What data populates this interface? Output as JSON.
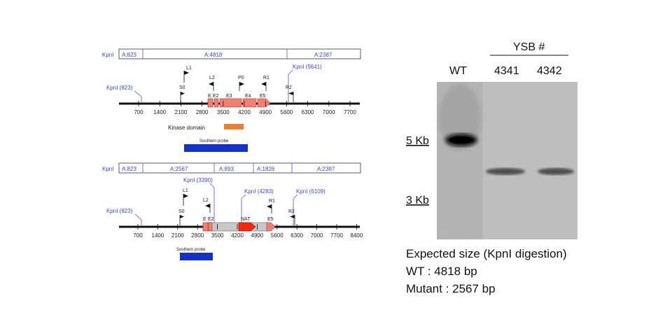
{
  "wt_map": {
    "segments": [
      "KpnI",
      "A:823",
      "A:4818",
      "A:2387"
    ],
    "kpn_sites": [
      "KpnI (823)",
      "KpnI (5641)"
    ],
    "primers": [
      "S0",
      "L1",
      "L2",
      "P0",
      "R1",
      "R2"
    ],
    "exons": [
      "E",
      "E2",
      "E3",
      "E4",
      "E5"
    ],
    "ticks": [
      "700",
      "1400",
      "2100",
      "2800",
      "3500",
      "4200",
      "4900",
      "5600",
      "6300",
      "7000",
      "7700"
    ],
    "kinase_label": "Kinase domain",
    "probe_label": "Southern probe",
    "kinase_color": "#f07c30",
    "probe_color": "#1530c8",
    "exon_color": "#f08070"
  },
  "mut_map": {
    "segments": [
      "KpnI",
      "A:823",
      "A:2567",
      "A:893",
      "A:1826",
      "A:2387"
    ],
    "kpn_sites": [
      "KpnI (823)",
      "KpnI (3390)",
      "KpnI (4283)",
      "KpnI (6109)"
    ],
    "primers": [
      "S0",
      "L1",
      "L2",
      "R1",
      "R2"
    ],
    "exons": [
      "E",
      "E2",
      "NAT",
      "E5"
    ],
    "ticks": [
      "700",
      "1400",
      "2100",
      "2800",
      "3500",
      "4200",
      "4900",
      "5600",
      "6300",
      "7000",
      "7700",
      "8400"
    ],
    "probe_label": "Southern probe",
    "nat_color": "#ee2a10"
  },
  "gel": {
    "header": "YSB #",
    "lanes": [
      "WT",
      "4341",
      "4342"
    ],
    "markers": [
      "5 Kb",
      "3 Kb"
    ]
  },
  "notes": {
    "line1": "Expected size (KpnI digestion)",
    "line2": "WT : 4818 bp",
    "line3": "Mutant : 2567 bp"
  }
}
